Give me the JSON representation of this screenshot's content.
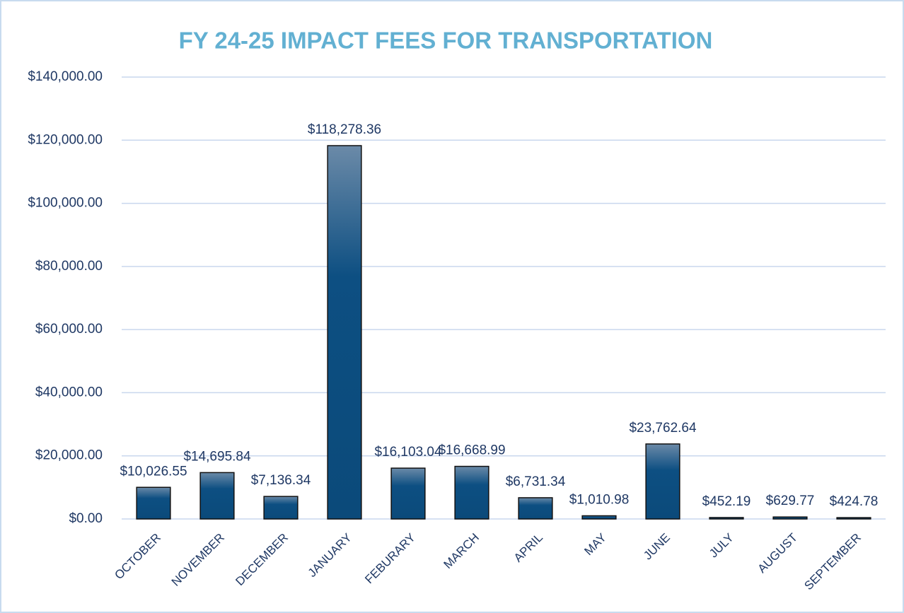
{
  "chart_data": {
    "type": "bar",
    "title": "FY 24-25 IMPACT FEES FOR TRANSPORTATION",
    "categories": [
      "OCTOBER",
      "NOVEMBER",
      "DECEMBER",
      "JANUARY",
      "FEBURARY",
      "MARCH",
      "APRIL",
      "MAY",
      "JUNE",
      "JULY",
      "AUGUST",
      "SEPTEMBER"
    ],
    "values": [
      10026.55,
      14695.84,
      7136.34,
      118278.36,
      16103.04,
      16668.99,
      6731.34,
      1010.98,
      23762.64,
      452.19,
      629.77,
      424.78
    ],
    "value_labels": [
      "$10,026.55",
      "$14,695.84",
      "$7,136.34",
      "$118,278.36",
      "$16,103.04",
      "$16,668.99",
      "$6,731.34",
      "$1,010.98",
      "$23,762.64",
      "$452.19",
      "$629.77",
      "$424.78"
    ],
    "color": "#0d4f82",
    "ylim": [
      0,
      140000
    ],
    "yticks": [
      {
        "value": 0,
        "label": "$0.00"
      },
      {
        "value": 20000,
        "label": "$20,000.00"
      },
      {
        "value": 40000,
        "label": "$40,000.00"
      },
      {
        "value": 60000,
        "label": "$60,000.00"
      },
      {
        "value": 80000,
        "label": "$80,000.00"
      },
      {
        "value": 100000,
        "label": "$100,000.00"
      },
      {
        "value": 120000,
        "label": "$120,000.00"
      },
      {
        "value": 140000,
        "label": "$140,000.00"
      }
    ],
    "grid": true
  }
}
